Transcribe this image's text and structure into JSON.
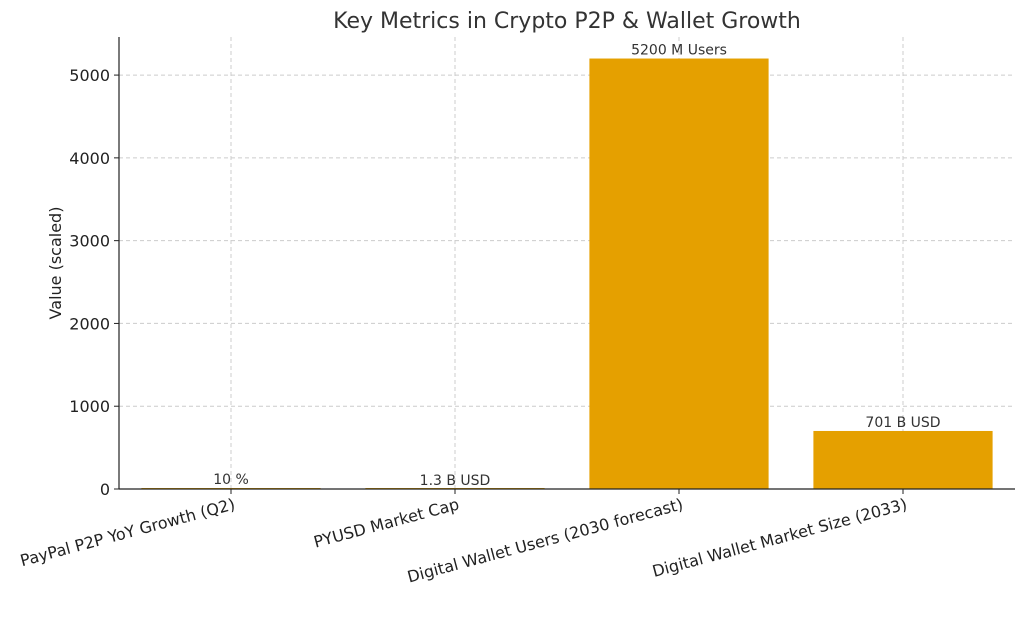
{
  "chart_data": {
    "type": "bar",
    "title": "Key Metrics in Crypto P2P & Wallet Growth",
    "xlabel": "",
    "ylabel": "Value (scaled)",
    "categories": [
      "PayPal P2P YoY Growth (Q2)",
      "PYUSD Market Cap",
      "Digital Wallet Users (2030 forecast)",
      "Digital Wallet Market Size (2033)"
    ],
    "values": [
      10,
      1.3,
      5200,
      701
    ],
    "data_labels": [
      "10 %",
      "1.3 B USD",
      "5200 M Users",
      "701 B USD"
    ],
    "ylim": [
      0,
      5460
    ],
    "yticks": [
      0,
      1000,
      2000,
      3000,
      4000,
      5000
    ],
    "grid": true,
    "bar_color": "#E5A000"
  }
}
